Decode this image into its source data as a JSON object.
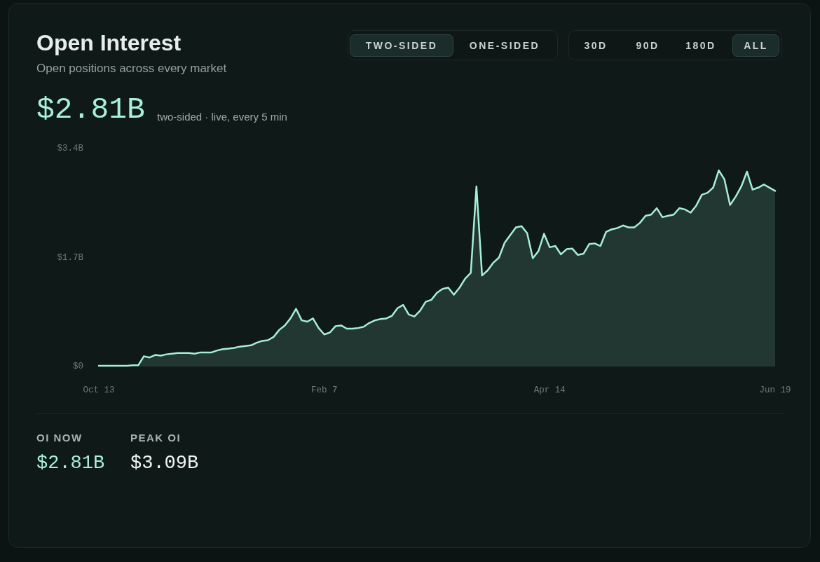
{
  "chart_data": {
    "type": "area",
    "title": "Open Interest",
    "subtitle": "Open positions across every market",
    "annotations": [
      "TWO-SIDED",
      "ONE-SIDED",
      "30D",
      "90D",
      "180D",
      "ALL",
      "$2.81B",
      "two-sided · live, every 5 min",
      "OI NOW",
      "$2.81B",
      "PEAK OI",
      "$3.09B"
    ],
    "categories": [
      "Oct 13",
      null,
      null,
      null,
      null,
      null,
      null,
      null,
      null,
      null,
      null,
      null,
      null,
      null,
      null,
      null,
      null,
      null,
      null,
      null,
      null,
      null,
      null,
      null,
      null,
      null,
      null,
      null,
      null,
      null,
      null,
      null,
      null,
      null,
      null,
      null,
      null,
      null,
      null,
      null,
      "Feb 7",
      null,
      null,
      null,
      null,
      null,
      null,
      null,
      null,
      null,
      null,
      null,
      null,
      null,
      null,
      null,
      null,
      null,
      null,
      null,
      null,
      null,
      null,
      null,
      null,
      null,
      null,
      null,
      null,
      null,
      null,
      null,
      null,
      null,
      null,
      null,
      null,
      null,
      null,
      null,
      "Apr 14",
      null,
      null,
      null,
      null,
      null,
      null,
      null,
      null,
      null,
      null,
      null,
      null,
      null,
      null,
      null,
      null,
      null,
      null,
      null,
      null,
      null,
      null,
      null,
      null,
      null,
      null,
      null,
      null,
      null,
      null,
      null,
      null,
      null,
      null,
      null,
      null,
      null,
      null,
      null,
      "Jun 19"
    ],
    "values": [
      0.01,
      0.01,
      0.01,
      0.01,
      0.01,
      0.01,
      0.02,
      0.02,
      0.16,
      0.14,
      0.18,
      0.17,
      0.19,
      0.2,
      0.21,
      0.21,
      0.21,
      0.2,
      0.22,
      0.22,
      0.22,
      0.25,
      0.27,
      0.28,
      0.29,
      0.31,
      0.32,
      0.33,
      0.37,
      0.4,
      0.41,
      0.46,
      0.57,
      0.64,
      0.75,
      0.9,
      0.72,
      0.7,
      0.75,
      0.6,
      0.5,
      0.53,
      0.63,
      0.64,
      0.59,
      0.59,
      0.6,
      0.62,
      0.68,
      0.72,
      0.74,
      0.75,
      0.79,
      0.91,
      0.96,
      0.81,
      0.78,
      0.87,
      1.01,
      1.04,
      1.15,
      1.21,
      1.23,
      1.12,
      1.23,
      1.37,
      1.46,
      2.81,
      1.42,
      1.5,
      1.62,
      1.7,
      1.93,
      2.05,
      2.17,
      2.19,
      2.08,
      1.69,
      1.8,
      2.07,
      1.86,
      1.88,
      1.75,
      1.83,
      1.84,
      1.74,
      1.76,
      1.91,
      1.92,
      1.88,
      2.1,
      2.14,
      2.16,
      2.2,
      2.17,
      2.17,
      2.24,
      2.35,
      2.37,
      2.47,
      2.33,
      2.35,
      2.37,
      2.47,
      2.45,
      2.4,
      2.51,
      2.68,
      2.71,
      2.79,
      3.06,
      2.92,
      2.52,
      2.65,
      2.81,
      3.04,
      2.76,
      2.79,
      2.84,
      2.79,
      2.74
    ],
    "color": "#a6efd6",
    "ylim": [
      0,
      3.4
    ],
    "yticks": [
      {
        "value": 0,
        "label": "$0"
      },
      {
        "value": 1.7,
        "label": "$1.7B"
      },
      {
        "value": 3.4,
        "label": "$3.4B"
      }
    ],
    "marker": "none"
  }
}
